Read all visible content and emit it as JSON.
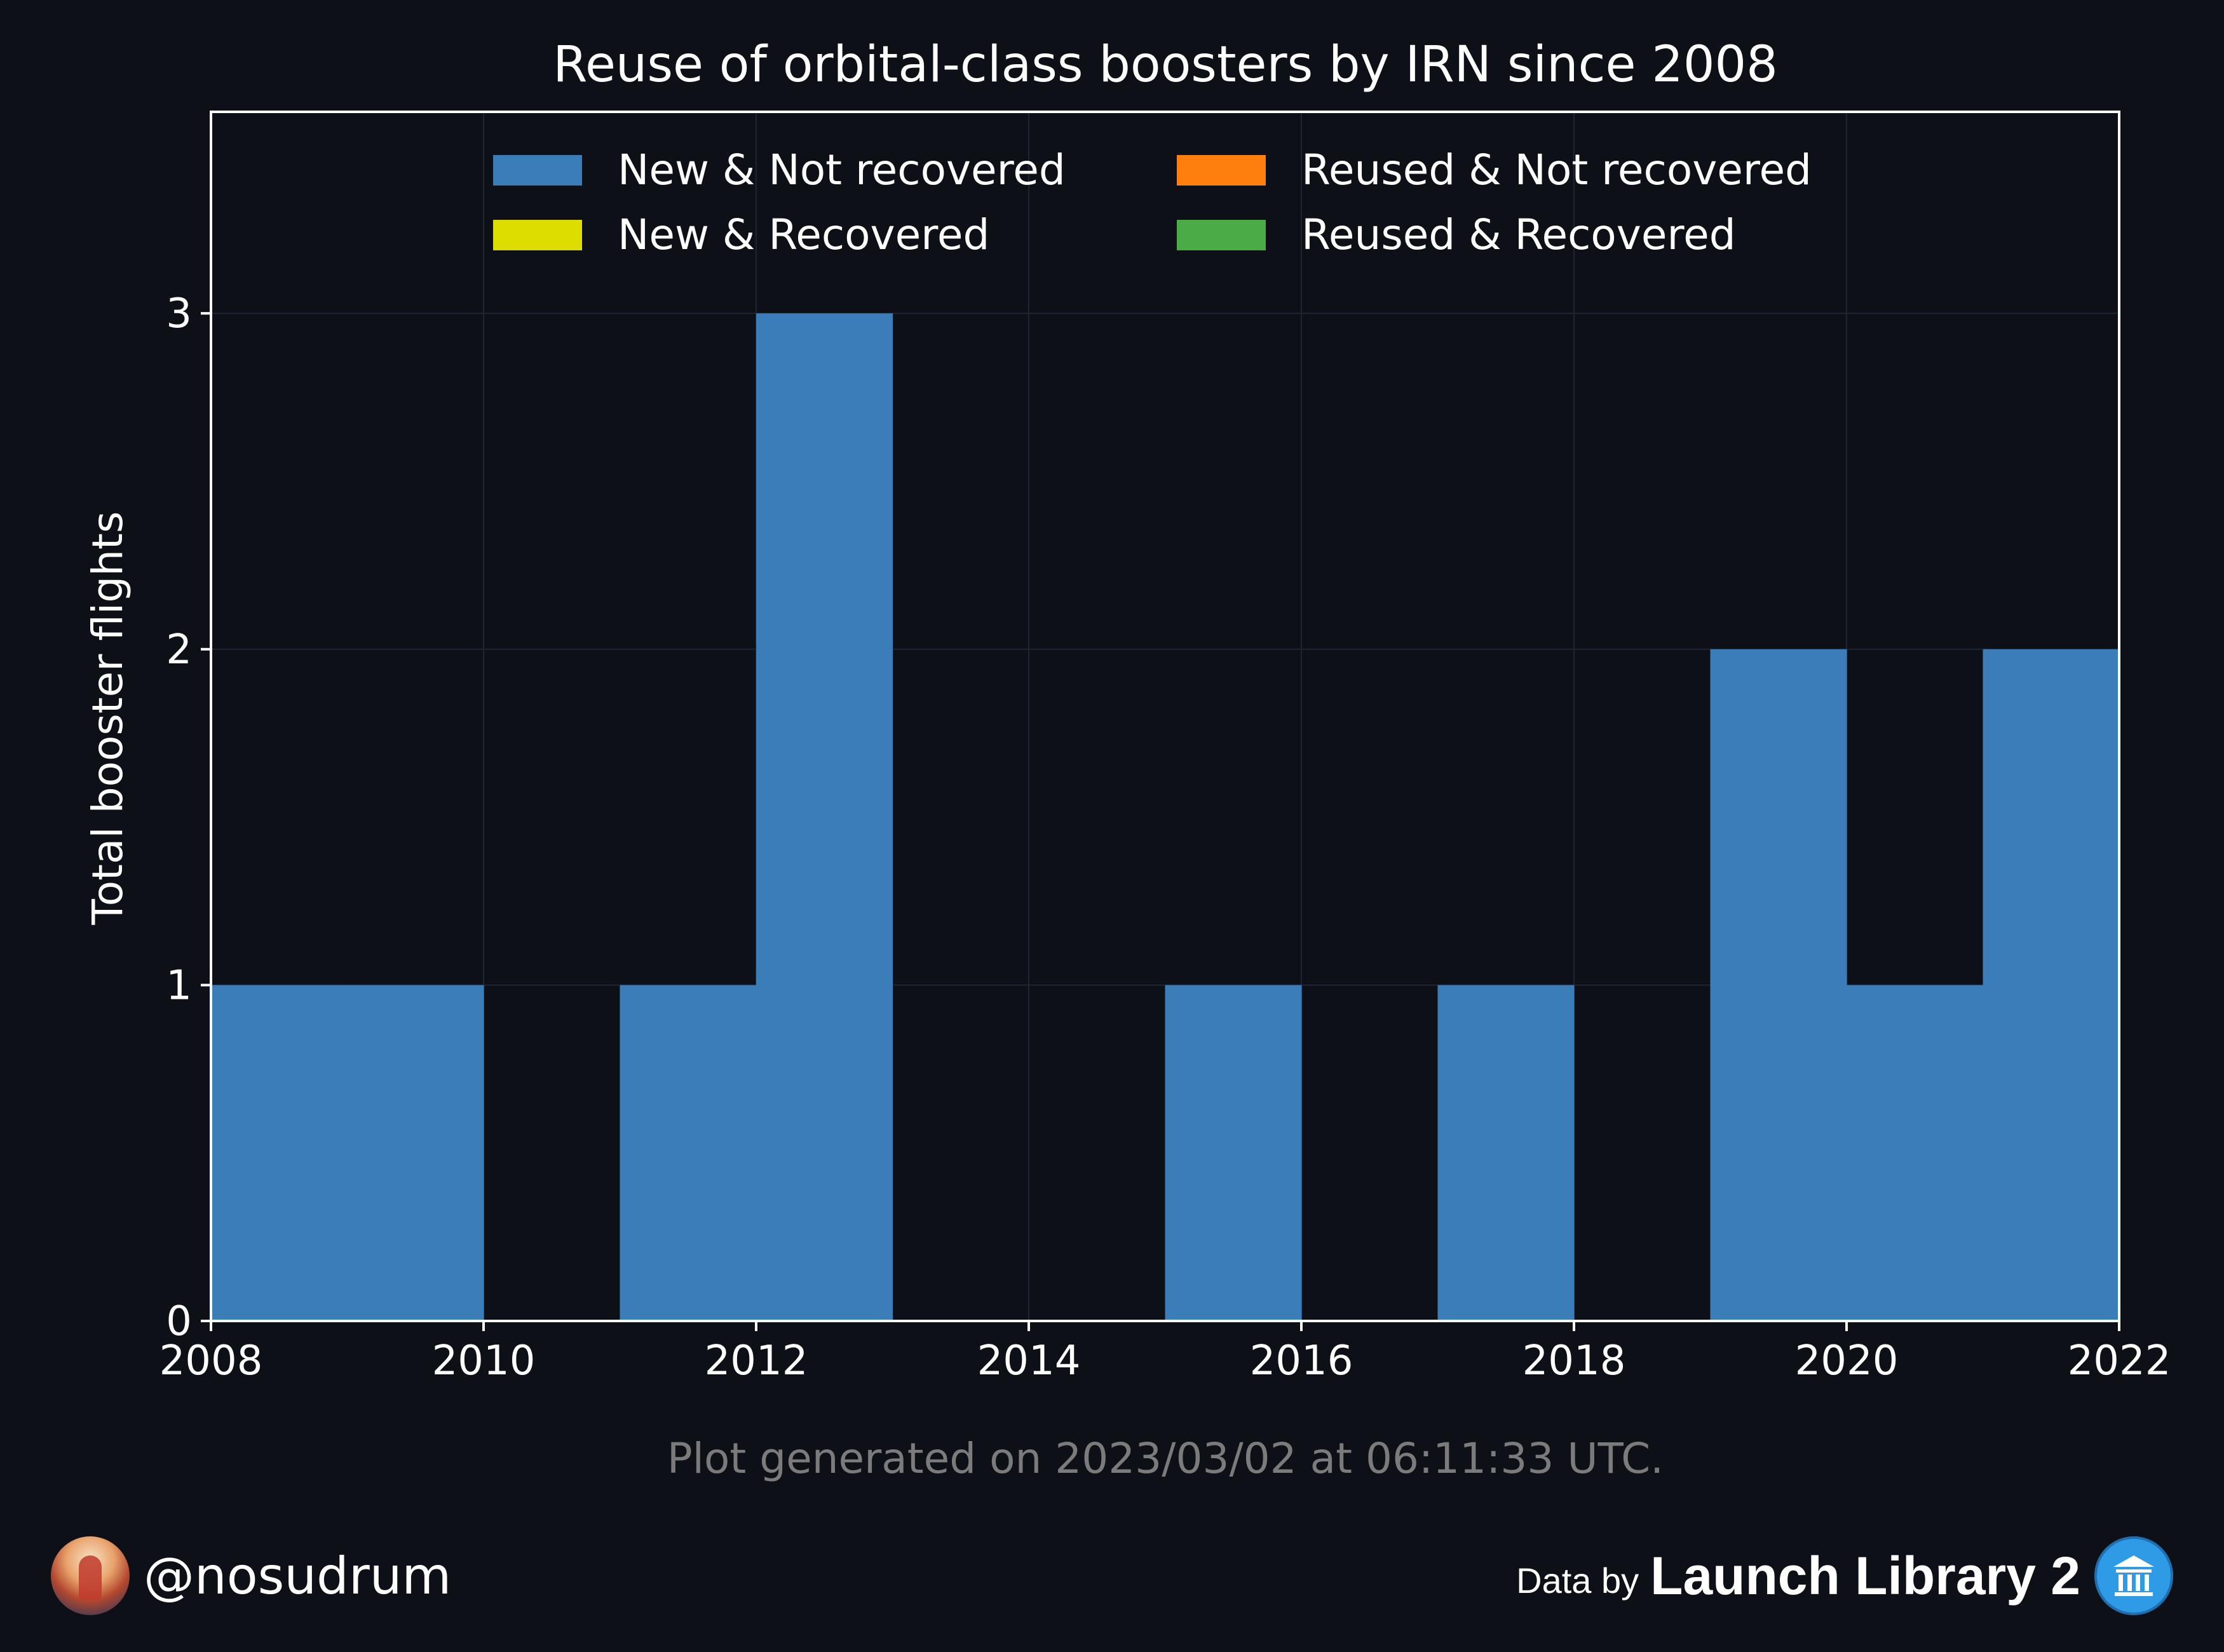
{
  "chart_data": {
    "type": "bar",
    "title": "Reuse of orbital-class boosters by IRN since 2008",
    "xlabel": "",
    "ylabel": "Total booster flights",
    "xlim": [
      2008,
      2022
    ],
    "ylim": [
      0,
      3.6
    ],
    "x_ticks": [
      "2008",
      "2010",
      "2012",
      "2014",
      "2016",
      "2018",
      "2020",
      "2022"
    ],
    "y_ticks": [
      "0",
      "1",
      "2",
      "3"
    ],
    "bins": [
      2008,
      2009,
      2010,
      2011,
      2012,
      2013,
      2014,
      2015,
      2016,
      2017,
      2018,
      2019,
      2020,
      2021
    ],
    "bin_width": 1,
    "series": [
      {
        "name": "New & Not recovered",
        "color": "#3a7db8",
        "values": [
          1,
          1,
          0,
          1,
          3,
          0,
          0,
          1,
          0,
          1,
          0,
          2,
          1,
          2
        ]
      },
      {
        "name": "New & Recovered",
        "color": "#dddd00",
        "values": [
          0,
          0,
          0,
          0,
          0,
          0,
          0,
          0,
          0,
          0,
          0,
          0,
          0,
          0
        ]
      },
      {
        "name": "Reused & Not recovered",
        "color": "#ff7f0e",
        "values": [
          0,
          0,
          0,
          0,
          0,
          0,
          0,
          0,
          0,
          0,
          0,
          0,
          0,
          0
        ]
      },
      {
        "name": "Reused & Recovered",
        "color": "#4aab47",
        "values": [
          0,
          0,
          0,
          0,
          0,
          0,
          0,
          0,
          0,
          0,
          0,
          0,
          0,
          0
        ]
      }
    ],
    "grid": true,
    "legend_position": "upper center",
    "footnote": "Plot generated on 2023/03/02 at 06:11:33 UTC."
  },
  "footer": {
    "author_handle": "@nosudrum",
    "data_by_label": "Data by",
    "source_name": "Launch Library 2"
  },
  "icons": {
    "avatar": "astronaut-avatar-icon",
    "source_logo": "library-building-icon"
  },
  "colors": {
    "background": "#0d1017",
    "axis": "#ffffff",
    "grid": "#1f2530",
    "footnote": "#7b7b7b"
  }
}
